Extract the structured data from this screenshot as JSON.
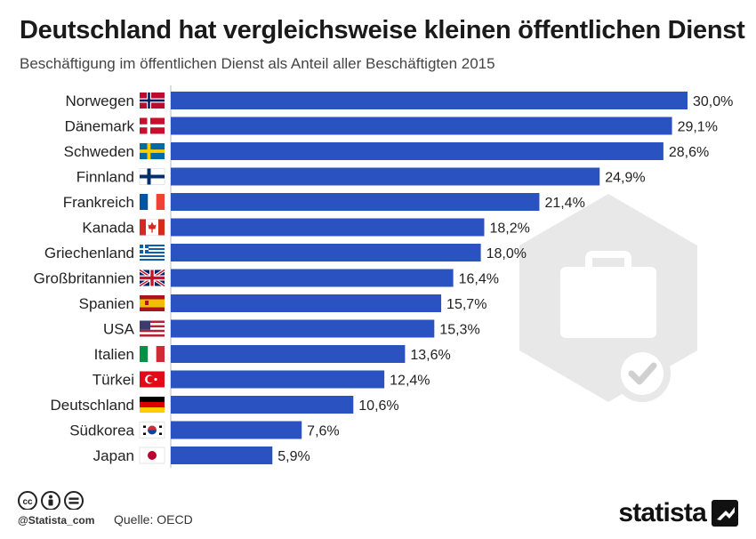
{
  "title": "Deutschland hat vergleichsweise kleinen öffentlichen Dienst",
  "subtitle": "Beschäftigung im öffentlichen Dienst als Anteil aller Beschäftigten 2015",
  "footer": {
    "handle": "@Statista_com",
    "source": "Quelle: OECD",
    "brand": "statista"
  },
  "colors": {
    "bar": "#2a53c1",
    "watermark": "#e6e6e6"
  },
  "chart_data": {
    "type": "bar",
    "orientation": "horizontal",
    "categories": [
      "Norwegen",
      "Dänemark",
      "Schweden",
      "Finnland",
      "Frankreich",
      "Kanada",
      "Griechenland",
      "Großbritannien",
      "Spanien",
      "USA",
      "Italien",
      "Türkei",
      "Deutschland",
      "Südkorea",
      "Japan"
    ],
    "values": [
      30.0,
      29.1,
      28.6,
      24.9,
      21.4,
      18.2,
      18.0,
      16.4,
      15.7,
      15.3,
      13.6,
      12.4,
      10.6,
      7.6,
      5.9
    ],
    "value_labels": [
      "30,0%",
      "29,1%",
      "28,6%",
      "24,9%",
      "21,4%",
      "18,2%",
      "18,0%",
      "16,4%",
      "15,7%",
      "15,3%",
      "13,6%",
      "12,4%",
      "10,6%",
      "7,6%",
      "5,9%"
    ],
    "flags": [
      "norway-flag",
      "denmark-flag",
      "sweden-flag",
      "finland-flag",
      "france-flag",
      "canada-flag",
      "greece-flag",
      "uk-flag",
      "spain-flag",
      "usa-flag",
      "italy-flag",
      "turkey-flag",
      "germany-flag",
      "south-korea-flag",
      "japan-flag"
    ],
    "unit": "%",
    "xlim": [
      0,
      30
    ],
    "grid": false,
    "legend": "none"
  }
}
